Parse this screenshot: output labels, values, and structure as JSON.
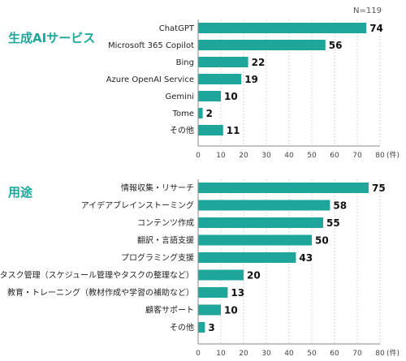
{
  "note": "N=119",
  "chart_data": [
    {
      "type": "bar",
      "orientation": "horizontal",
      "title": "生成AIサービス",
      "categories": [
        "ChatGPT",
        "Microsoft 365 Copilot",
        "Bing",
        "Azure OpenAI Service",
        "Gemini",
        "Tome",
        "その他"
      ],
      "values": [
        74,
        56,
        22,
        19,
        10,
        2,
        11
      ],
      "xlim": [
        0,
        80
      ],
      "ticks": [
        0,
        10,
        20,
        30,
        40,
        50,
        60,
        70,
        80
      ],
      "unit_label": "(件)",
      "bar_color": "#1fa69a",
      "grid": true
    },
    {
      "type": "bar",
      "orientation": "horizontal",
      "title": "用途",
      "categories": [
        "情報収集・リサーチ",
        "アイデアブレインストーミング",
        "コンテンツ作成",
        "翻訳・言語支援",
        "プログラミング支援",
        "日常のタスク管理（スケジュール管理やタスクの整理など）",
        "教育・トレーニング（教材作成や学習の補助など）",
        "顧客サポート",
        "その他"
      ],
      "values": [
        75,
        58,
        55,
        50,
        43,
        20,
        13,
        10,
        3
      ],
      "xlim": [
        0,
        80
      ],
      "ticks": [
        0,
        10,
        20,
        30,
        40,
        50,
        60,
        70,
        80
      ],
      "unit_label": "(件)",
      "bar_color": "#1fa69a",
      "grid": true
    }
  ]
}
